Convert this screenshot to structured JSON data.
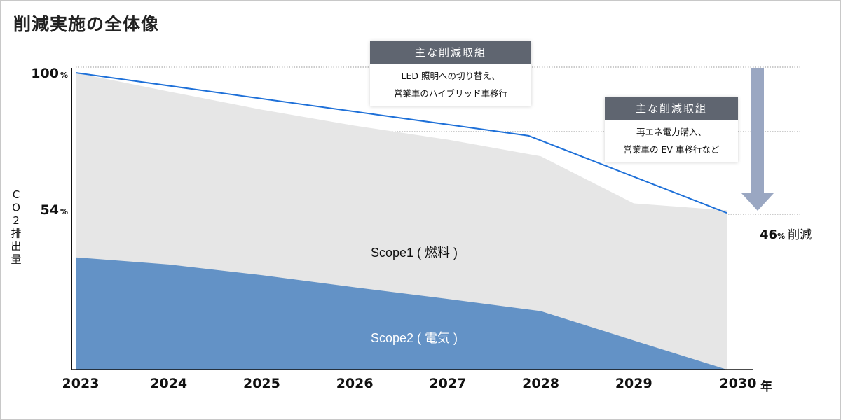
{
  "title": "削減実施の全体像",
  "chart_data": {
    "type": "area",
    "x": [
      "2023",
      "2024",
      "2025",
      "2026",
      "2027",
      "2028",
      "2029",
      "2030"
    ],
    "x_unit": "年",
    "ylabel": "CO2排出量",
    "y_ticks": [
      {
        "value": 100,
        "label": "100",
        "unit": "%"
      },
      {
        "value": 54,
        "label": "54",
        "unit": "%"
      }
    ],
    "ylim": [
      0,
      100
    ],
    "series": [
      {
        "name": "Scope1 ( 燃料 )",
        "stack": "top",
        "color": "#e6e6e6",
        "total_values": [
          100,
          93.7,
          87.6,
          82.2,
          77.5,
          71.9,
          56,
          53.7
        ]
      },
      {
        "name": "Scope2 ( 電気 )",
        "stack": "bottom",
        "color": "#6392c6",
        "values": [
          37.8,
          35.4,
          31.8,
          27.7,
          23.8,
          19.7,
          9.8,
          0
        ]
      }
    ],
    "target_line": {
      "color": "#1e70d8",
      "points": [
        [
          2023,
          100
        ],
        [
          2027.87,
          78.8
        ],
        [
          2030,
          52.8
        ]
      ]
    },
    "reduction": {
      "number": "46",
      "unit": "%",
      "text": "削減",
      "arrow_color": "#9aa7c2"
    },
    "grid": "dotted-horizontal"
  },
  "boxes": [
    {
      "header": "主な削減取組",
      "lines": [
        "LED 照明への切り替え、",
        "営業車のハイブリッド車移行"
      ]
    },
    {
      "header": "主な削減取組",
      "lines": [
        "再エネ電力購入、",
        "営業車の EV 車移行など"
      ]
    }
  ]
}
